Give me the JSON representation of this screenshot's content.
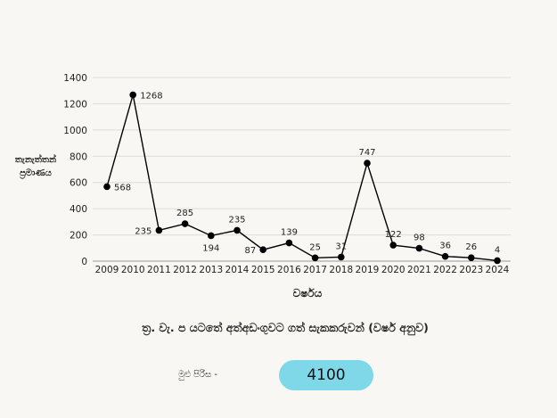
{
  "chart_data": {
    "type": "line",
    "ylabel": "තැනැත්තන් ප්‍රමාණය",
    "xlabel": "වර්ෂය",
    "caption": "ත්‍ර. වැ. ප යටතේ අත්අඩංගුවට ගත් සැකකරුවන් (වර්ෂ අනුව)",
    "ylim": [
      0,
      1400
    ],
    "yticks": [
      0,
      200,
      400,
      600,
      800,
      1000,
      1200,
      1400
    ],
    "grid": true,
    "legend": "none",
    "x": [
      "2009",
      "2010",
      "2011",
      "2012",
      "2013",
      "2014",
      "2015",
      "2016",
      "2017",
      "2018",
      "2019",
      "2020",
      "2021",
      "2022",
      "2023",
      "2024"
    ],
    "values": [
      568,
      1268,
      235,
      285,
      194,
      235,
      87,
      139,
      25,
      31,
      747,
      122,
      98,
      36,
      26,
      4
    ],
    "line_color": "#000000"
  },
  "total": {
    "label": "මුළු පිරිස -",
    "value": "4100",
    "badge_color": "#7fd8e8"
  }
}
